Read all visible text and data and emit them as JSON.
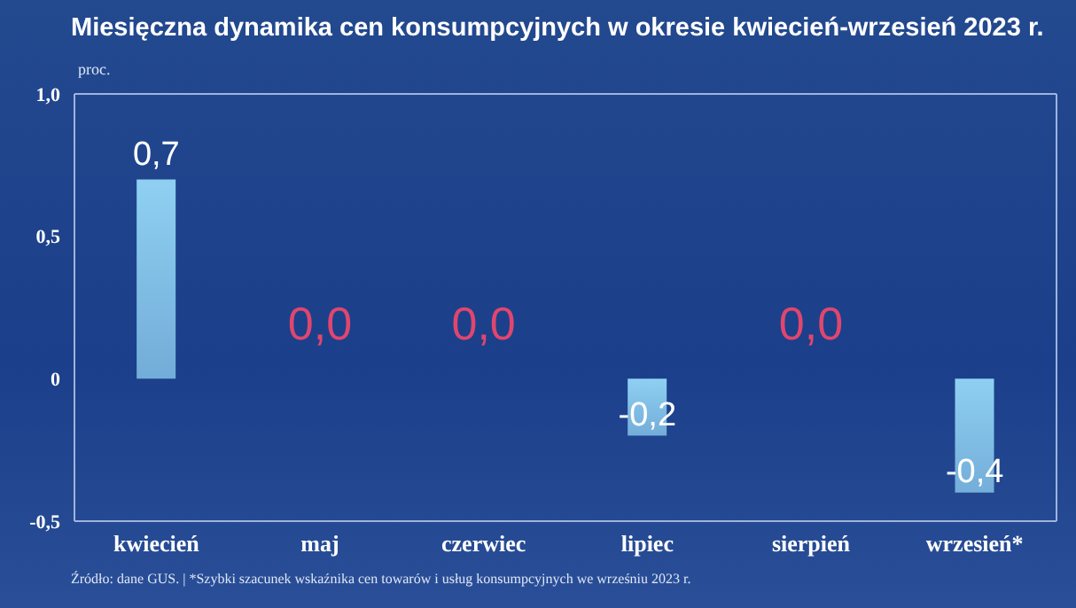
{
  "chart_data": {
    "type": "bar",
    "title": "Miesięczna dynamika cen konsumpcyjnych w okresie kwiecień-wrzesień 2023 r.",
    "ylabel": "proc.",
    "categories": [
      "kwiecień",
      "maj",
      "czerwiec",
      "lipiec",
      "sierpień",
      "wrzesień*"
    ],
    "values": [
      0.7,
      0.0,
      0.0,
      -0.2,
      0.0,
      -0.4
    ],
    "value_labels": [
      "0,7",
      "0,0",
      "0,0",
      "-0,2",
      "0,0",
      "-0,4"
    ],
    "color": "#8fd0f2",
    "ylim": [
      -0.5,
      1.0
    ],
    "yticks": [
      {
        "value": -0.5,
        "label": "-0,5"
      },
      {
        "value": 0,
        "label": "0"
      },
      {
        "value": 0.5,
        "label": "0,5"
      },
      {
        "value": 1.0,
        "label": "1,0"
      }
    ],
    "annotations": [
      "Źródło: dane GUS.  |  *Szybki szacunek wskaźnika cen towarów i usług konsumpcyjnych we wrześniu 2023 r."
    ]
  }
}
